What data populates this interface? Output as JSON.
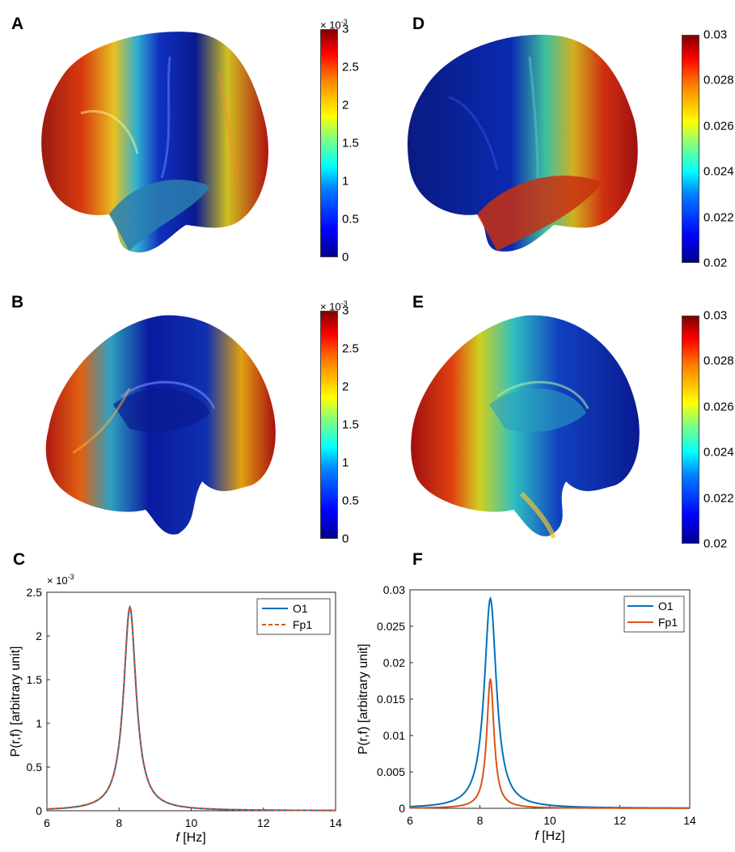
{
  "panels": {
    "A": {
      "label": "A",
      "colorbar": {
        "ticks": [
          "3",
          "2.5",
          "2",
          "1.5",
          "1",
          "0.5",
          "0"
        ],
        "multiplier_base": "× 10",
        "multiplier_exp": "-3"
      }
    },
    "B": {
      "label": "B",
      "colorbar": {
        "ticks": [
          "3",
          "2.5",
          "2",
          "1.5",
          "1",
          "0.5",
          "0"
        ],
        "multiplier_base": "× 10",
        "multiplier_exp": "-3"
      }
    },
    "D": {
      "label": "D",
      "colorbar": {
        "ticks": [
          "0.03",
          "0.028",
          "0.026",
          "0.024",
          "0.022",
          "0.02"
        ]
      }
    },
    "E": {
      "label": "E",
      "colorbar": {
        "ticks": [
          "0.03",
          "0.028",
          "0.026",
          "0.024",
          "0.022",
          "0.02"
        ]
      }
    },
    "C": {
      "label": "C"
    },
    "F": {
      "label": "F"
    }
  },
  "colors": {
    "o1": "#0072BD",
    "fp1": "#D95319"
  },
  "chart_data": [
    {
      "panel": "C",
      "type": "line",
      "xlabel_italic": "f",
      "xlabel_rest": " [Hz]",
      "ylabel": "P(r,f) [arbitrary unit]",
      "y_multiplier_base": "× 10",
      "y_multiplier_exp": "-3",
      "xlim": [
        6,
        14
      ],
      "ylim": [
        0,
        2.5
      ],
      "xticks": [
        "6",
        "8",
        "10",
        "12",
        "14"
      ],
      "yticks": [
        "0",
        "0.5",
        "1",
        "1.5",
        "2",
        "2.5"
      ],
      "peak_x": 8.3,
      "series": [
        {
          "name": "O1",
          "style": "solid",
          "peak": 2.33,
          "floor": 0.0,
          "width": 0.42
        },
        {
          "name": "Fp1",
          "style": "dashed",
          "peak": 2.33,
          "floor": 0.0,
          "width": 0.42
        }
      ],
      "legend": "top-right"
    },
    {
      "panel": "F",
      "type": "line",
      "xlabel_italic": "f",
      "xlabel_rest": " [Hz]",
      "ylabel": "P(r,f) [arbitrary unit]",
      "xlim": [
        6,
        14
      ],
      "ylim": [
        0,
        0.03
      ],
      "xticks": [
        "6",
        "8",
        "10",
        "12",
        "14"
      ],
      "yticks": [
        "0",
        "0.005",
        "0.01",
        "0.015",
        "0.02",
        "0.025",
        "0.03"
      ],
      "peak_x": 8.3,
      "series": [
        {
          "name": "O1",
          "style": "solid",
          "peak": 0.0288,
          "floor": 0.0,
          "width": 0.42
        },
        {
          "name": "Fp1",
          "style": "solid",
          "peak": 0.0178,
          "floor": 0.0,
          "width": 0.25
        }
      ],
      "legend": "top-right"
    }
  ]
}
